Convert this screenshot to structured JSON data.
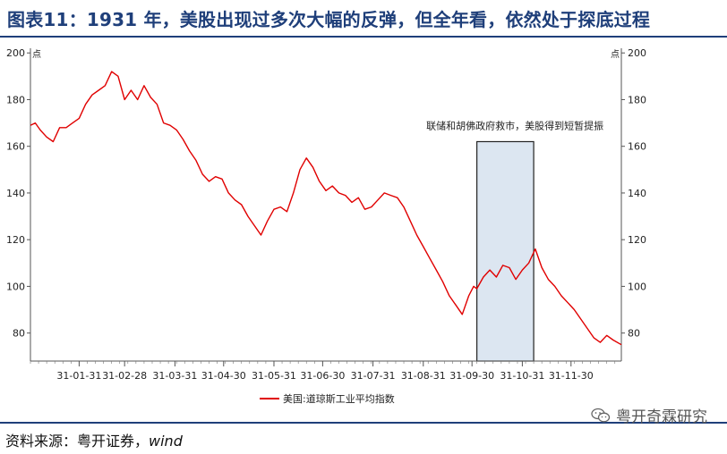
{
  "title": "图表11：1931 年，美股出现过多次大幅的反弹，但全年看，依然处于探底过程",
  "source_label": "资料来源：粤开证券，",
  "source_wind": "wind",
  "watermark": "粤开奇霖研究",
  "colors": {
    "title": "#1f3f7a",
    "line": "#e00000",
    "highlight_fill": "#dce6f1",
    "highlight_stroke": "#222222"
  },
  "chart_data": {
    "type": "line",
    "title": "",
    "y_unit_left": "点",
    "y_unit_right": "点",
    "ylim": [
      68,
      202
    ],
    "yticks": [
      80,
      100,
      120,
      140,
      160,
      180,
      200
    ],
    "x_tick_labels": [
      "31-01-31",
      "31-02-28",
      "31-03-31",
      "31-04-30",
      "31-05-31",
      "31-06-30",
      "31-07-31",
      "31-08-31",
      "31-09-30",
      "31-10-31",
      "31-11-30"
    ],
    "x_tick_days": [
      30,
      58,
      89,
      119,
      150,
      180,
      211,
      242,
      272,
      303,
      333
    ],
    "x_range_days": [
      0,
      364
    ],
    "legend": "美国:道琼斯工业平均指数",
    "legend_position": "bottom-center",
    "annotation": {
      "text": "联储和胡佛政府救市，美股得到短暂提振",
      "start_day": 275,
      "end_day": 310
    },
    "series": [
      {
        "name": "美国:道琼斯工业平均指数",
        "x": [
          0,
          3,
          6,
          10,
          14,
          18,
          22,
          26,
          30,
          34,
          38,
          42,
          46,
          50,
          54,
          58,
          62,
          66,
          70,
          74,
          78,
          82,
          86,
          90,
          94,
          98,
          102,
          106,
          110,
          114,
          118,
          122,
          126,
          130,
          134,
          138,
          142,
          146,
          150,
          154,
          158,
          162,
          166,
          170,
          174,
          178,
          182,
          186,
          190,
          194,
          198,
          202,
          206,
          210,
          214,
          218,
          222,
          226,
          230,
          234,
          238,
          242,
          246,
          250,
          254,
          258,
          262,
          266,
          270,
          273,
          275,
          279,
          283,
          287,
          291,
          295,
          299,
          303,
          307,
          311,
          315,
          319,
          323,
          327,
          331,
          335,
          339,
          343,
          347,
          351,
          355,
          359,
          364
        ],
        "y": [
          169,
          170,
          167,
          164,
          162,
          168,
          168,
          170,
          172,
          178,
          182,
          184,
          186,
          192,
          190,
          180,
          184,
          180,
          186,
          181,
          178,
          170,
          169,
          167,
          163,
          158,
          154,
          148,
          145,
          147,
          146,
          140,
          137,
          135,
          130,
          126,
          122,
          128,
          133,
          134,
          132,
          140,
          150,
          155,
          151,
          145,
          141,
          143,
          140,
          139,
          136,
          138,
          133,
          134,
          137,
          140,
          139,
          138,
          134,
          128,
          122,
          117,
          112,
          107,
          102,
          96,
          92,
          88,
          96,
          100,
          99,
          104,
          107,
          104,
          109,
          108,
          103,
          107,
          110,
          116,
          108,
          103,
          100,
          96,
          93,
          90,
          86,
          82,
          78,
          76,
          79,
          77,
          75
        ]
      }
    ]
  }
}
